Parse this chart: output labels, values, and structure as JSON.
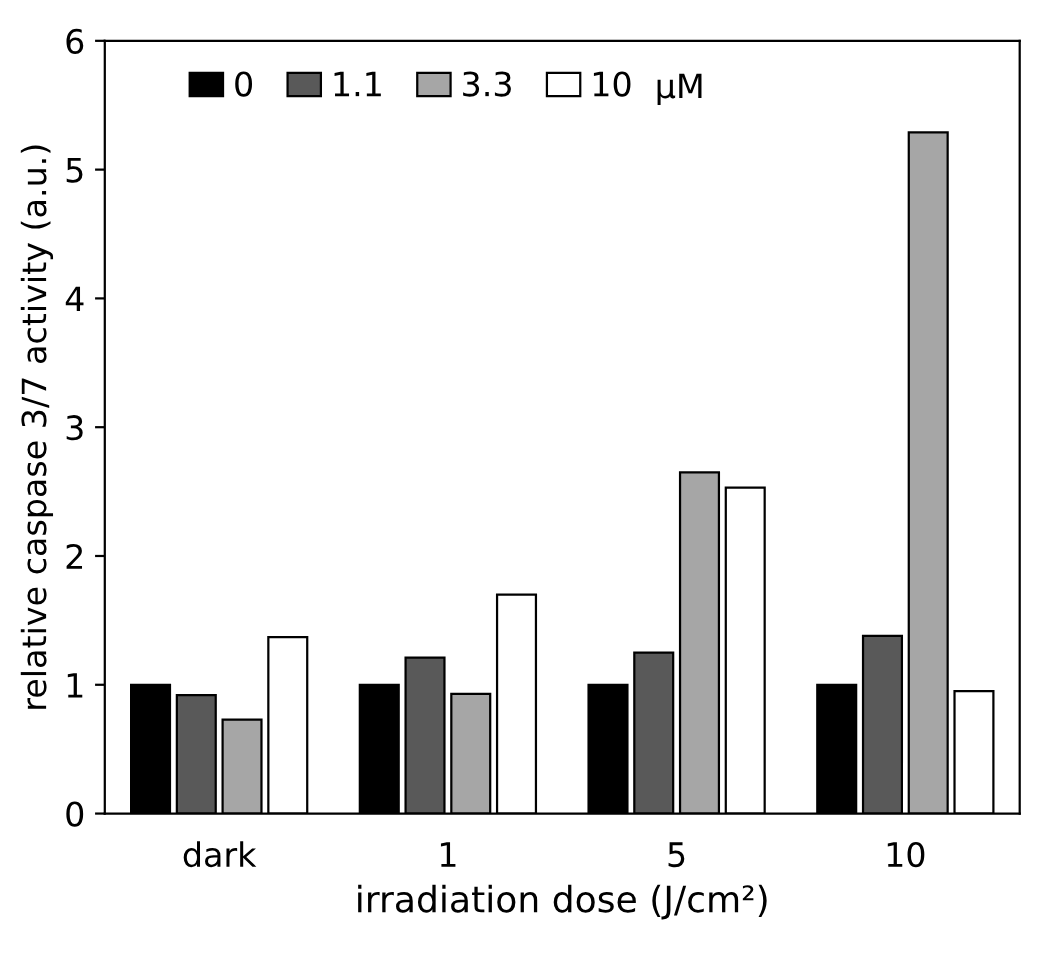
{
  "chart_data": {
    "type": "bar",
    "xlabel": "irradiation dose (J/cm²)",
    "ylabel": "relative caspase 3/7 activity (a.u.)",
    "legend_title": "µM",
    "categories": [
      "dark",
      "1",
      "5",
      "10"
    ],
    "series": [
      {
        "name": "0",
        "color": "#000000",
        "values": [
          1.0,
          1.0,
          1.0,
          1.0
        ]
      },
      {
        "name": "1.1",
        "color": "#595959",
        "values": [
          0.92,
          1.21,
          1.25,
          1.38
        ]
      },
      {
        "name": "3.3",
        "color": "#a6a6a6",
        "values": [
          0.73,
          0.93,
          2.65,
          5.29
        ]
      },
      {
        "name": "10",
        "color": "#ffffff",
        "values": [
          1.37,
          1.7,
          2.53,
          0.95
        ]
      }
    ],
    "ylim": [
      0,
      6
    ],
    "yticks": [
      0,
      1,
      2,
      3,
      4,
      5,
      6
    ],
    "grid": false,
    "legend": "top left"
  }
}
